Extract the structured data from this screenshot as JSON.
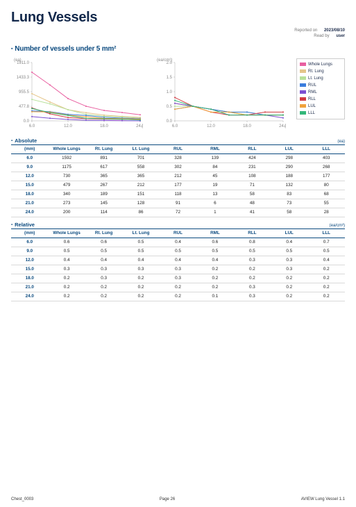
{
  "title": "Lung Vessels",
  "meta": {
    "reported_label": "Reported on",
    "reported_val": "2023/08/10",
    "readby_label": "Read by",
    "readby_val": "user"
  },
  "section_title": "Number of vessels under 5 mm²",
  "legend": [
    {
      "label": "Whole Lungs",
      "color": "#e85fa0"
    },
    {
      "label": "Rt. Lung",
      "color": "#e4c58a"
    },
    {
      "label": "Lt. Lung",
      "color": "#b7e09a"
    },
    {
      "label": "RUL",
      "color": "#3b7ddd"
    },
    {
      "label": "RML",
      "color": "#7c4fd1"
    },
    {
      "label": "RLL",
      "color": "#d23a42"
    },
    {
      "label": "LUL",
      "color": "#f0a23c"
    },
    {
      "label": "LLL",
      "color": "#34b77a"
    }
  ],
  "chart1": {
    "unit": "(ea)",
    "x_unit": "(Depth)",
    "xticks": [
      6.0,
      12.0,
      18.0,
      24.0
    ],
    "yticks": [
      0.0,
      477.8,
      955.5,
      1433.3,
      1911.0
    ],
    "xlim": [
      6,
      24
    ],
    "ylim": [
      0,
      1911
    ],
    "gridcolor": "#eeeeee",
    "series": [
      {
        "color": "#e85fa0",
        "x": [
          6,
          9,
          12,
          15,
          18,
          21,
          24
        ],
        "y": [
          1592,
          1175,
          730,
          479,
          340,
          273,
          200
        ]
      },
      {
        "color": "#e4c58a",
        "x": [
          6,
          9,
          12,
          15,
          18,
          21,
          24
        ],
        "y": [
          891,
          617,
          365,
          267,
          189,
          145,
          114
        ]
      },
      {
        "color": "#b7e09a",
        "x": [
          6,
          9,
          12,
          15,
          18,
          21,
          24
        ],
        "y": [
          701,
          558,
          365,
          212,
          151,
          128,
          86
        ]
      },
      {
        "color": "#3b7ddd",
        "x": [
          6,
          9,
          12,
          15,
          18,
          21,
          24
        ],
        "y": [
          328,
          302,
          212,
          177,
          118,
          91,
          72
        ]
      },
      {
        "color": "#7c4fd1",
        "x": [
          6,
          9,
          12,
          15,
          18,
          21,
          24
        ],
        "y": [
          139,
          84,
          45,
          19,
          13,
          6,
          1
        ]
      },
      {
        "color": "#d23a42",
        "x": [
          6,
          9,
          12,
          15,
          18,
          21,
          24
        ],
        "y": [
          424,
          231,
          108,
          71,
          58,
          48,
          41
        ]
      },
      {
        "color": "#f0a23c",
        "x": [
          6,
          9,
          12,
          15,
          18,
          21,
          24
        ],
        "y": [
          298,
          290,
          188,
          132,
          83,
          73,
          58
        ]
      },
      {
        "color": "#34b77a",
        "x": [
          6,
          9,
          12,
          15,
          18,
          21,
          24
        ],
        "y": [
          403,
          268,
          177,
          80,
          68,
          55,
          28
        ]
      }
    ]
  },
  "chart2": {
    "unit": "(ea/cm³)",
    "x_unit": "(Depth)",
    "xticks": [
      6.0,
      12.0,
      18.0,
      24.0
    ],
    "yticks": [
      0.0,
      0.5,
      1.0,
      1.5,
      2.0
    ],
    "xlim": [
      6,
      24
    ],
    "ylim": [
      0,
      2.0
    ],
    "gridcolor": "#eeeeee",
    "series": [
      {
        "color": "#e85fa0",
        "x": [
          6,
          9,
          12,
          15,
          18,
          21,
          24
        ],
        "y": [
          0.6,
          0.5,
          0.4,
          0.3,
          0.2,
          0.2,
          0.2
        ]
      },
      {
        "color": "#e4c58a",
        "x": [
          6,
          9,
          12,
          15,
          18,
          21,
          24
        ],
        "y": [
          0.6,
          0.5,
          0.4,
          0.3,
          0.3,
          0.2,
          0.2
        ]
      },
      {
        "color": "#b7e09a",
        "x": [
          6,
          9,
          12,
          15,
          18,
          21,
          24
        ],
        "y": [
          0.5,
          0.5,
          0.4,
          0.3,
          0.2,
          0.2,
          0.2
        ]
      },
      {
        "color": "#3b7ddd",
        "x": [
          6,
          9,
          12,
          15,
          18,
          21,
          24
        ],
        "y": [
          0.4,
          0.5,
          0.4,
          0.3,
          0.3,
          0.2,
          0.2
        ]
      },
      {
        "color": "#7c4fd1",
        "x": [
          6,
          9,
          12,
          15,
          18,
          21,
          24
        ],
        "y": [
          0.6,
          0.5,
          0.4,
          0.2,
          0.2,
          0.2,
          0.1
        ]
      },
      {
        "color": "#d23a42",
        "x": [
          6,
          9,
          12,
          15,
          18,
          21,
          24
        ],
        "y": [
          0.8,
          0.5,
          0.3,
          0.2,
          0.2,
          0.3,
          0.3
        ]
      },
      {
        "color": "#f0a23c",
        "x": [
          6,
          9,
          12,
          15,
          18,
          21,
          24
        ],
        "y": [
          0.4,
          0.5,
          0.3,
          0.3,
          0.2,
          0.2,
          0.2
        ]
      },
      {
        "color": "#34b77a",
        "x": [
          6,
          9,
          12,
          15,
          18,
          21,
          24
        ],
        "y": [
          0.7,
          0.5,
          0.4,
          0.2,
          0.2,
          0.2,
          0.2
        ]
      }
    ]
  },
  "tables": {
    "columns": [
      "(mm)",
      "Whole Lungs",
      "Rt. Lung",
      "Lt. Lung",
      "RUL",
      "RML",
      "RLL",
      "LUL",
      "LLL"
    ],
    "absolute": {
      "label": "Absolute",
      "unit": "(ea)",
      "rows": [
        [
          "6.0",
          "1592",
          "891",
          "701",
          "328",
          "139",
          "424",
          "298",
          "403"
        ],
        [
          "9.0",
          "1175",
          "617",
          "558",
          "302",
          "84",
          "231",
          "290",
          "268"
        ],
        [
          "12.0",
          "730",
          "365",
          "365",
          "212",
          "45",
          "108",
          "188",
          "177"
        ],
        [
          "15.0",
          "479",
          "267",
          "212",
          "177",
          "19",
          "71",
          "132",
          "80"
        ],
        [
          "18.0",
          "340",
          "189",
          "151",
          "118",
          "13",
          "58",
          "83",
          "68"
        ],
        [
          "21.0",
          "273",
          "145",
          "128",
          "91",
          "6",
          "48",
          "73",
          "55"
        ],
        [
          "24.0",
          "200",
          "114",
          "86",
          "72",
          "1",
          "41",
          "58",
          "28"
        ]
      ]
    },
    "relative": {
      "label": "Relative",
      "unit": "(ea/cm³)",
      "rows": [
        [
          "6.0",
          "0.6",
          "0.6",
          "0.5",
          "0.4",
          "0.6",
          "0.8",
          "0.4",
          "0.7"
        ],
        [
          "9.0",
          "0.5",
          "0.5",
          "0.5",
          "0.5",
          "0.5",
          "0.5",
          "0.5",
          "0.5"
        ],
        [
          "12.0",
          "0.4",
          "0.4",
          "0.4",
          "0.4",
          "0.4",
          "0.3",
          "0.3",
          "0.4"
        ],
        [
          "15.0",
          "0.3",
          "0.3",
          "0.3",
          "0.3",
          "0.2",
          "0.2",
          "0.3",
          "0.2"
        ],
        [
          "18.0",
          "0.2",
          "0.3",
          "0.2",
          "0.3",
          "0.2",
          "0.2",
          "0.2",
          "0.2"
        ],
        [
          "21.0",
          "0.2",
          "0.2",
          "0.2",
          "0.2",
          "0.2",
          "0.3",
          "0.2",
          "0.2"
        ],
        [
          "24.0",
          "0.2",
          "0.2",
          "0.2",
          "0.2",
          "0.1",
          "0.3",
          "0.2",
          "0.2"
        ]
      ]
    }
  },
  "footer": {
    "left": "Chest_0003",
    "center": "Page 26",
    "right": "AVIEW Lung Vessel 1.1"
  }
}
